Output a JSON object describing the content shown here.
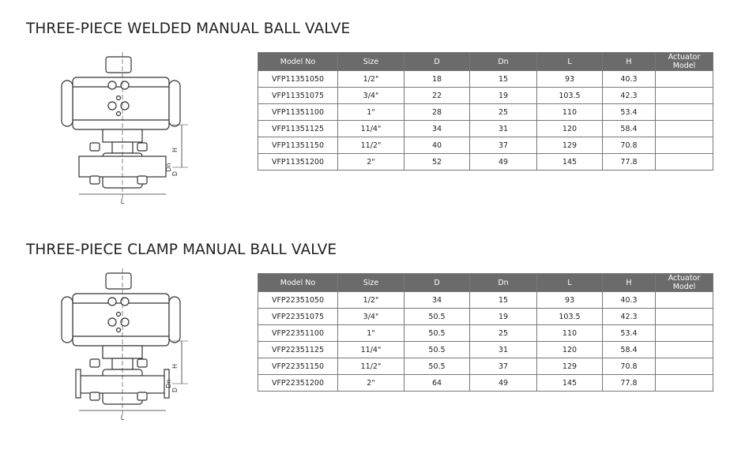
{
  "sections": [
    {
      "title": "THREE-PIECE WELDED MANUAL BALL VALVE",
      "drawing_labels": {
        "h": "H",
        "l": "L",
        "dn": "Dn",
        "d": "D"
      },
      "table": {
        "header": [
          "Model No",
          "Size",
          "D",
          "Dn",
          "L",
          "H",
          "Actuator Model"
        ],
        "rows": [
          [
            "VFP11351050",
            "1/2\"",
            "18",
            "15",
            "93",
            "40.3"
          ],
          [
            "VFP11351075",
            "3/4\"",
            "22",
            "19",
            "103.5",
            "42.3"
          ],
          [
            "VFP11351100",
            "1\"",
            "28",
            "25",
            "110",
            "53.4"
          ],
          [
            "VFP11351125",
            "11/4\"",
            "34",
            "31",
            "120",
            "58.4"
          ],
          [
            "VFP11351150",
            "11/2\"",
            "40",
            "37",
            "129",
            "70.8"
          ],
          [
            "VFP11351200",
            "2\"",
            "52",
            "49",
            "145",
            "77.8"
          ]
        ]
      }
    },
    {
      "title": "THREE-PIECE CLAMP MANUAL BALL VALVE",
      "drawing_labels": {
        "h": "H",
        "l": "L",
        "dn": "Dn",
        "d": "D"
      },
      "table": {
        "header": [
          "Model No",
          "Size",
          "D",
          "Dn",
          "L",
          "H",
          "Actuator Model"
        ],
        "rows": [
          [
            "VFP22351050",
            "1/2\"",
            "34",
            "15",
            "93",
            "40.3"
          ],
          [
            "VFP22351075",
            "3/4\"",
            "50.5",
            "19",
            "103.5",
            "42.3"
          ],
          [
            "VFP22351100",
            "1\"",
            "50.5",
            "25",
            "110",
            "53.4"
          ],
          [
            "VFP22351125",
            "11/4\"",
            "50.5",
            "31",
            "120",
            "58.4"
          ],
          [
            "VFP22351150",
            "11/2\"",
            "50.5",
            "37",
            "129",
            "70.8"
          ],
          [
            "VFP22351200",
            "2\"",
            "64",
            "49",
            "145",
            "77.8"
          ]
        ]
      }
    }
  ]
}
